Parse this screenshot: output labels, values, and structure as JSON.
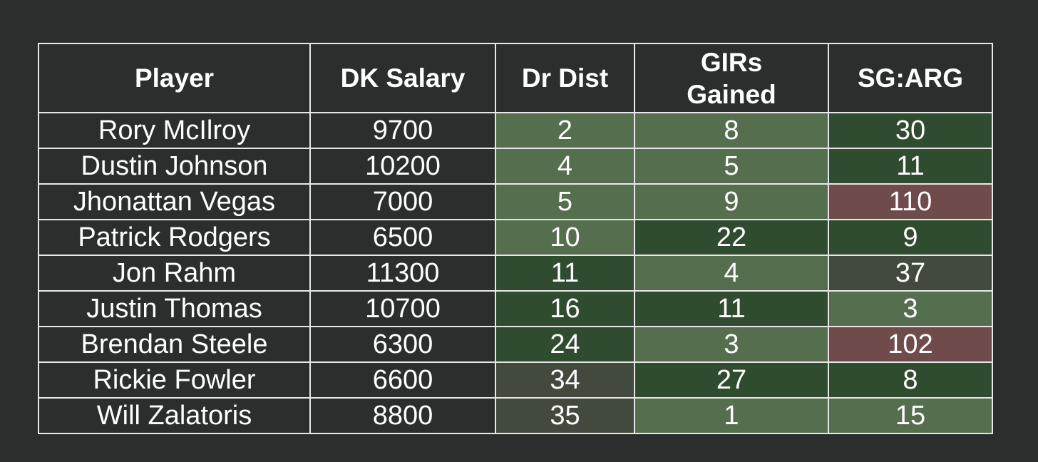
{
  "colors": {
    "background": "#2b2e2d",
    "grid": "#e8e8e8",
    "text": "#ffffff",
    "heat_light_green": "#556e4d",
    "heat_dark_green": "#2f4c30",
    "heat_neutral_gray": "#424a3e",
    "heat_red": "#704b4c"
  },
  "chart_data": {
    "type": "table",
    "columns": [
      "Player",
      "DK Salary",
      "Dr Dist",
      "GIRs Gained",
      "SG:ARG"
    ],
    "rows": [
      {
        "player": "Rory McIlroy",
        "salary": "9700",
        "dr_dist": "2",
        "girs": "8",
        "sg_arg": "30",
        "shade": [
          "light",
          "light",
          "dark"
        ]
      },
      {
        "player": "Dustin Johnson",
        "salary": "10200",
        "dr_dist": "4",
        "girs": "5",
        "sg_arg": "11",
        "shade": [
          "light",
          "light",
          "dark"
        ]
      },
      {
        "player": "Jhonattan Vegas",
        "salary": "7000",
        "dr_dist": "5",
        "girs": "9",
        "sg_arg": "110",
        "shade": [
          "light",
          "light",
          "red"
        ]
      },
      {
        "player": "Patrick Rodgers",
        "salary": "6500",
        "dr_dist": "10",
        "girs": "22",
        "sg_arg": "9",
        "shade": [
          "light",
          "dark",
          "dark"
        ]
      },
      {
        "player": "Jon Rahm",
        "salary": "11300",
        "dr_dist": "11",
        "girs": "4",
        "sg_arg": "37",
        "shade": [
          "dark",
          "light",
          "gray"
        ]
      },
      {
        "player": "Justin Thomas",
        "salary": "10700",
        "dr_dist": "16",
        "girs": "11",
        "sg_arg": "3",
        "shade": [
          "dark",
          "dark",
          "light"
        ]
      },
      {
        "player": "Brendan Steele",
        "salary": "6300",
        "dr_dist": "24",
        "girs": "3",
        "sg_arg": "102",
        "shade": [
          "dark",
          "light",
          "red"
        ]
      },
      {
        "player": "Rickie Fowler",
        "salary": "6600",
        "dr_dist": "34",
        "girs": "27",
        "sg_arg": "8",
        "shade": [
          "gray",
          "dark",
          "dark"
        ]
      },
      {
        "player": "Will Zalatoris",
        "salary": "8800",
        "dr_dist": "35",
        "girs": "1",
        "sg_arg": "15",
        "shade": [
          "gray",
          "light",
          "light"
        ]
      }
    ]
  }
}
